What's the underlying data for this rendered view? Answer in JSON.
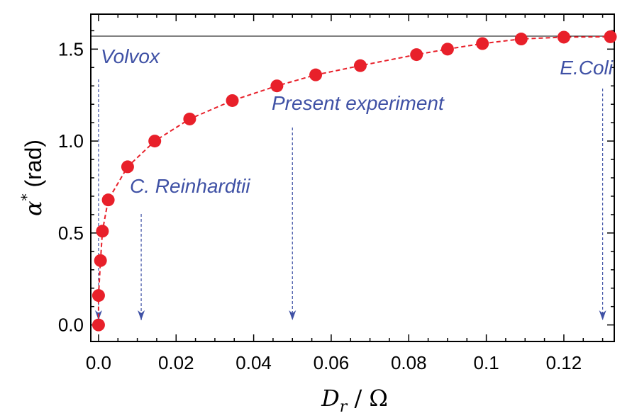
{
  "chart_data": {
    "type": "scatter",
    "xlabel_main": "D",
    "xlabel_sub": "r",
    "xlabel_rest": " / Ω",
    "ylabel_main": "α",
    "ylabel_sup": "*",
    "ylabel_rest": " (rad)",
    "xlim": [
      -0.002,
      0.133
    ],
    "ylim": [
      -0.09,
      1.69
    ],
    "x_ticks": [
      {
        "value": 0.0,
        "label": "0.0"
      },
      {
        "value": 0.02,
        "label": "0.02"
      },
      {
        "value": 0.04,
        "label": "0.04"
      },
      {
        "value": 0.06,
        "label": "0.06"
      },
      {
        "value": 0.08,
        "label": "0.08"
      },
      {
        "value": 0.1,
        "label": "0.1"
      },
      {
        "value": 0.12,
        "label": "0.12"
      }
    ],
    "y_ticks": [
      {
        "value": 0.0,
        "label": "0.0"
      },
      {
        "value": 0.5,
        "label": "0.5"
      },
      {
        "value": 1.0,
        "label": "1.0"
      },
      {
        "value": 1.5,
        "label": "1.5"
      }
    ],
    "asymptote": 1.5708,
    "series": [
      {
        "color": "#e8202a",
        "x": [
          0.0,
          0.0,
          0.0005,
          0.001,
          0.0025,
          0.0075,
          0.0145,
          0.0235,
          0.0345,
          0.046,
          0.056,
          0.0675,
          0.082,
          0.09,
          0.099,
          0.109,
          0.12,
          0.132
        ],
        "y": [
          0.0,
          0.16,
          0.35,
          0.51,
          0.68,
          0.86,
          1.0,
          1.12,
          1.22,
          1.3,
          1.36,
          1.41,
          1.47,
          1.5,
          1.53,
          1.555,
          1.565,
          1.567
        ]
      }
    ],
    "annotations": [
      {
        "text": "Volvox",
        "x": 0.0
      },
      {
        "text": "C. Reinhardtii",
        "x": 0.011
      },
      {
        "text": "Present experiment",
        "x": 0.05
      },
      {
        "text": "E.Coli",
        "x": 0.13
      }
    ],
    "annotation_color": "#3f51a5"
  }
}
